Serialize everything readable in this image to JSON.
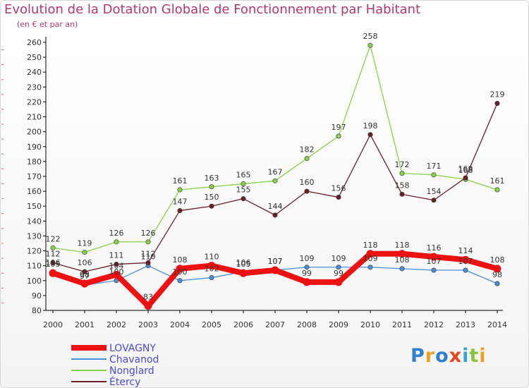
{
  "chart_data": {
    "type": "line",
    "title": "Evolution de la Dotation Globale de Fonctionnement par Habitant",
    "subtitle": "(en € et par an)",
    "xlabel": "",
    "ylabel": "",
    "ylim": [
      80,
      260
    ],
    "ytick_step": 10,
    "x": [
      "2000",
      "2001",
      "2002",
      "2003",
      "2004",
      "2005",
      "2006",
      "2007",
      "2008",
      "2009",
      "2010",
      "2011",
      "2012",
      "2013",
      "2014"
    ],
    "series": [
      {
        "name": "Chavanod",
        "color": "#4a90d9",
        "values": [
          106,
          97,
          100,
          110,
          100,
          102,
          106,
          107,
          109,
          109,
          109,
          108,
          107,
          107,
          98
        ],
        "labels": [
          "106",
          "97",
          "100",
          "110",
          "100",
          "102",
          "106",
          "107",
          "109",
          "109",
          "109",
          "108",
          "107",
          "107",
          "98"
        ]
      },
      {
        "name": "Nonglard",
        "color": "#88d14b",
        "values": [
          122,
          119,
          126,
          126,
          161,
          163,
          165,
          167,
          182,
          197,
          258,
          172,
          171,
          168,
          161
        ],
        "labels": [
          "122",
          "119",
          "126",
          "126",
          "161",
          "163",
          "165",
          "167",
          "182",
          "197",
          "258",
          "172",
          "171",
          "168",
          "161"
        ]
      },
      {
        "name": "Étercy",
        "color": "#6b1f2a",
        "values": [
          112,
          106,
          111,
          112,
          147,
          150,
          155,
          144,
          160,
          156,
          198,
          158,
          154,
          169,
          219
        ],
        "labels": [
          "112",
          "106",
          "111",
          "112",
          "147",
          "150",
          "155",
          "144",
          "160",
          "156",
          "198",
          "158",
          "154",
          "169",
          "219"
        ]
      },
      {
        "name": "LOVAGNY",
        "color": "#ee1111",
        "values": [
          105,
          98,
          104,
          83,
          108,
          110,
          105,
          107,
          99,
          99,
          118,
          118,
          116,
          114,
          108
        ],
        "labels": [
          "105",
          "98",
          "104",
          "83",
          "108",
          "110",
          "105",
          "107",
          "99",
          "99",
          "118",
          "118",
          "116",
          "114",
          "108"
        ]
      }
    ],
    "legend": [
      "LOVAGNY",
      "Chavanod",
      "Nonglard",
      "Étercy"
    ],
    "legend_position": "bottom-left"
  },
  "logo": {
    "text": "Proxiti",
    "letters": [
      "P",
      "r",
      "o",
      "x",
      "i",
      "t",
      "i"
    ],
    "colors": [
      "#2e7fd1",
      "#f0a020",
      "#2e7fd1",
      "#e94420",
      "#3aa0e0",
      "#88c440",
      "#f0a020"
    ]
  }
}
